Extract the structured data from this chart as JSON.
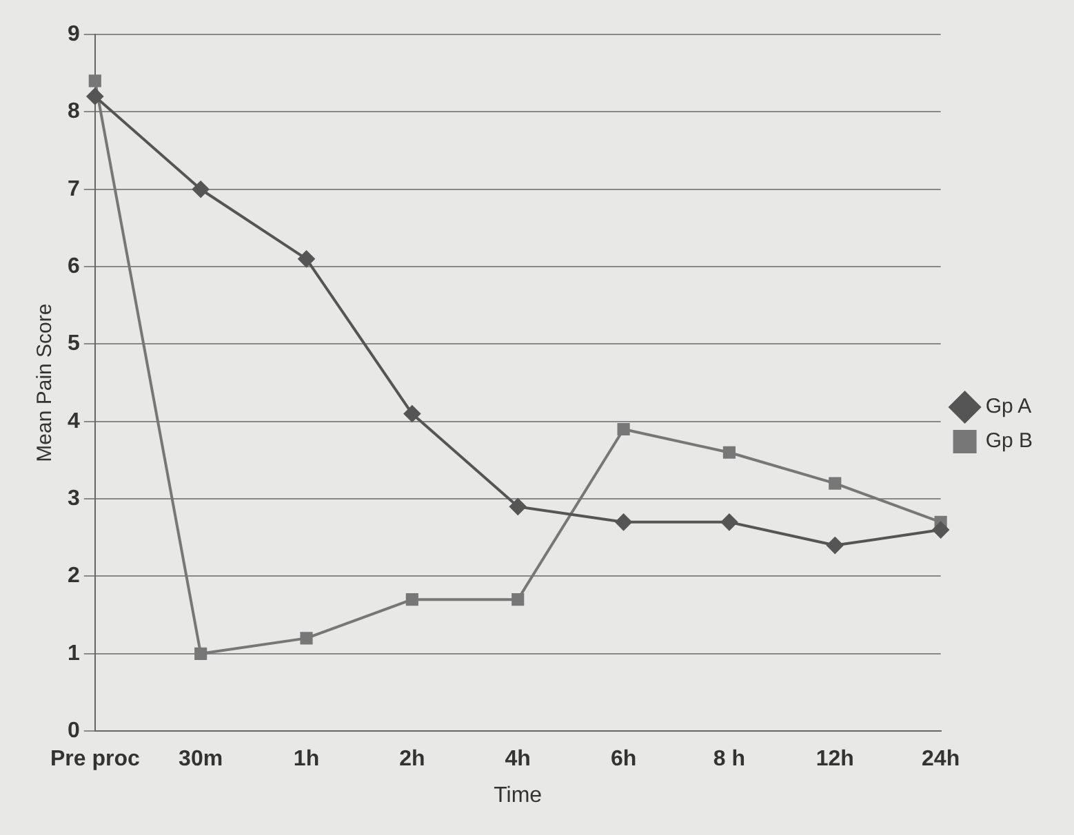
{
  "chart_data": {
    "type": "line",
    "xlabel": "Time",
    "ylabel": "Mean Pain Score",
    "categories": [
      "Pre proc",
      "30m",
      "1h",
      "2h",
      "4h",
      "6h",
      "8 h",
      "12h",
      "24h"
    ],
    "series": [
      {
        "name": "Gp A",
        "color": "#555555",
        "marker": "diamond",
        "values": [
          8.2,
          7.0,
          6.1,
          4.1,
          2.9,
          2.7,
          2.7,
          2.4,
          2.6
        ]
      },
      {
        "name": "Gp B",
        "color": "#777777",
        "marker": "square",
        "values": [
          8.4,
          1.0,
          1.2,
          1.7,
          1.7,
          3.9,
          3.6,
          3.2,
          2.7
        ]
      }
    ],
    "ylim": [
      0,
      9
    ],
    "yticks": [
      0,
      1,
      2,
      3,
      4,
      5,
      6,
      7,
      8,
      9
    ],
    "grid": "y",
    "legend": "right",
    "line_style": "solid"
  }
}
